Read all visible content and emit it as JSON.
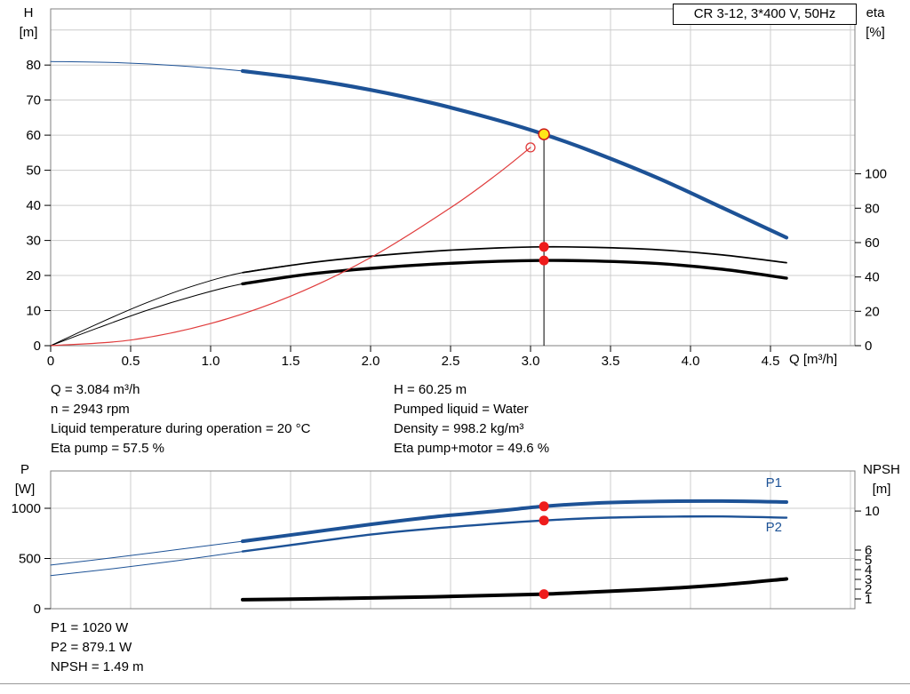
{
  "colors": {
    "blue": "#1d5296",
    "black": "#000000",
    "red": "#e03c3c",
    "red_dot": "#ee1c1c",
    "yellow": "#ffe619",
    "grid": "#cccccc",
    "border": "#808080"
  },
  "info_text": {
    "col1": [
      "Q = 3.084 m³/h",
      "n = 2943 rpm",
      "Liquid temperature during operation = 20 °C",
      "Eta pump = 57.5 %"
    ],
    "col2": [
      "H = 60.25 m",
      "Pumped liquid = Water",
      "Density = 998.2 kg/m³",
      "Eta pump+motor = 49.6 %"
    ]
  },
  "result_text": [
    "P1 = 1020 W",
    "P2 = 879.1 W",
    "NPSH = 1.49 m"
  ],
  "chart_data": [
    {
      "type": "line",
      "title": "CR 3-12, 3*400 V, 50Hz",
      "xlabel": "Q [m³/h]",
      "ylabel_left": "H",
      "ylabel_left_unit": "[m]",
      "ylabel_right": "eta",
      "ylabel_right_unit": "[%]",
      "grid": true,
      "xlim": [
        0,
        5.028
      ],
      "ylim_left": [
        0,
        96
      ],
      "ylim_right": [
        0,
        196
      ],
      "x_ticks": [
        "0",
        "0.5",
        "1.0",
        "1.5",
        "2.0",
        "2.5",
        "3.0",
        "3.5",
        "4.0",
        "4.5"
      ],
      "left_ticks": [
        "0",
        "10",
        "20",
        "30",
        "40",
        "50",
        "60",
        "70",
        "80"
      ],
      "right_ticks": [
        "0",
        "20",
        "40",
        "60",
        "80",
        "100"
      ],
      "series": [
        {
          "name": "QH-head",
          "axis": "left",
          "color": "blue",
          "thin": 1,
          "thick": 4.2,
          "thick_from": 1.2,
          "q": [
            0,
            0.4,
            0.8,
            1.2,
            1.6,
            2.0,
            2.4,
            2.8,
            3.084,
            3.4,
            3.8,
            4.2,
            4.6
          ],
          "v": [
            81,
            80.7,
            79.8,
            78.3,
            76.0,
            72.9,
            69.0,
            64.2,
            60.25,
            55.1,
            47.7,
            39.3,
            30.8
          ]
        },
        {
          "name": "eta-pump",
          "axis": "right",
          "color": "black",
          "thin": 1,
          "thick": 1.7,
          "thick_from": 1.2,
          "q": [
            0,
            0.3,
            0.6,
            0.9,
            1.2,
            1.6,
            2.0,
            2.4,
            2.8,
            3.084,
            3.4,
            3.8,
            4.2,
            4.6
          ],
          "v": [
            0,
            13,
            25,
            35,
            42.5,
            48,
            52,
            55,
            56.9,
            57.5,
            57.2,
            55.8,
            52.8,
            48.3
          ]
        },
        {
          "name": "eta-pump-motor",
          "axis": "right",
          "color": "black",
          "thin": 1,
          "thick": 3.4,
          "thick_from": 1.2,
          "q": [
            0,
            0.3,
            0.6,
            0.9,
            1.2,
            1.6,
            2.0,
            2.4,
            2.8,
            3.084,
            3.4,
            3.8,
            4.2,
            4.6
          ],
          "v": [
            0,
            10.5,
            20.5,
            29,
            36,
            41.5,
            45,
            47.5,
            49.1,
            49.6,
            49.3,
            47.8,
            44.5,
            39.3
          ]
        },
        {
          "name": "system-curve",
          "axis": "left",
          "color": "red",
          "thin": 1.2,
          "thick": 1.2,
          "thick_from": 99,
          "q": [
            0,
            0.5,
            1.0,
            1.5,
            2.0,
            2.5,
            2.8,
            3.0
          ],
          "v": [
            0,
            1.6,
            6.3,
            14.1,
            25.1,
            39.3,
            49.2,
            56.5
          ]
        }
      ],
      "vline": {
        "q": 3.084,
        "to": 60.25,
        "axis": "left"
      },
      "markers": [
        {
          "q": 3.0,
          "v": 56.5,
          "axis": "left",
          "style": "open-red"
        },
        {
          "q": 3.084,
          "v": 60.25,
          "axis": "left",
          "style": "yellow"
        },
        {
          "q": 3.084,
          "v": 57.5,
          "axis": "right",
          "style": "red"
        },
        {
          "q": 3.084,
          "v": 49.6,
          "axis": "right",
          "style": "red"
        }
      ],
      "duty_point": {
        "q": 3.084,
        "h": 60.25,
        "eta_pump": 57.5,
        "eta_pump_motor": 49.6
      }
    },
    {
      "type": "line",
      "title": "",
      "xlabel": "",
      "ylabel_left": "P",
      "ylabel_left_unit": "[W]",
      "ylabel_right": "NPSH",
      "ylabel_right_unit": "[m]",
      "grid": true,
      "xlim": [
        0,
        5.028
      ],
      "ylim_left": [
        0,
        1372
      ],
      "ylim_right": [
        0,
        14.1
      ],
      "x_ticks": [],
      "left_ticks": [
        "0",
        "500",
        "1000"
      ],
      "right_ticks": [
        "1",
        "2",
        "3",
        "4",
        "5",
        "6",
        "10"
      ],
      "series": [
        {
          "name": "P1",
          "axis": "left",
          "color": "blue",
          "thin": 1,
          "thick": 4,
          "thick_from": 1.2,
          "q": [
            0,
            0.4,
            0.8,
            1.2,
            1.6,
            2.0,
            2.4,
            2.8,
            3.084,
            3.4,
            3.8,
            4.2,
            4.6
          ],
          "v": [
            435,
            510,
            590,
            672,
            755,
            840,
            915,
            975,
            1020,
            1052,
            1068,
            1072,
            1062
          ]
        },
        {
          "name": "P2",
          "axis": "left",
          "color": "blue",
          "thin": 1,
          "thick": 2.4,
          "thick_from": 1.2,
          "q": [
            0,
            0.4,
            0.8,
            1.2,
            1.6,
            2.0,
            2.4,
            2.8,
            3.084,
            3.4,
            3.8,
            4.2,
            4.6
          ],
          "v": [
            330,
            400,
            480,
            570,
            655,
            738,
            800,
            850,
            879.1,
            903,
            916,
            919,
            906
          ]
        },
        {
          "name": "NPSH",
          "axis": "right",
          "color": "black",
          "thin": 4,
          "thick": 4,
          "thick_from": 99,
          "q": [
            1.2,
            1.6,
            2.0,
            2.4,
            2.8,
            3.084,
            3.4,
            3.8,
            4.2,
            4.6
          ],
          "v": [
            0.92,
            1.0,
            1.1,
            1.22,
            1.37,
            1.49,
            1.72,
            2.02,
            2.45,
            3.05
          ]
        }
      ],
      "markers": [
        {
          "q": 3.084,
          "v": 1020,
          "axis": "left",
          "style": "red"
        },
        {
          "q": 3.084,
          "v": 879.1,
          "axis": "left",
          "style": "red"
        },
        {
          "q": 3.084,
          "v": 1.49,
          "axis": "right",
          "style": "red"
        }
      ],
      "labels": [
        {
          "text": "P1",
          "q": 4.47,
          "v": 1255,
          "axis": "left",
          "color": "blue"
        },
        {
          "text": "P2",
          "q": 4.47,
          "v": 815,
          "axis": "left",
          "color": "blue"
        }
      ]
    }
  ]
}
